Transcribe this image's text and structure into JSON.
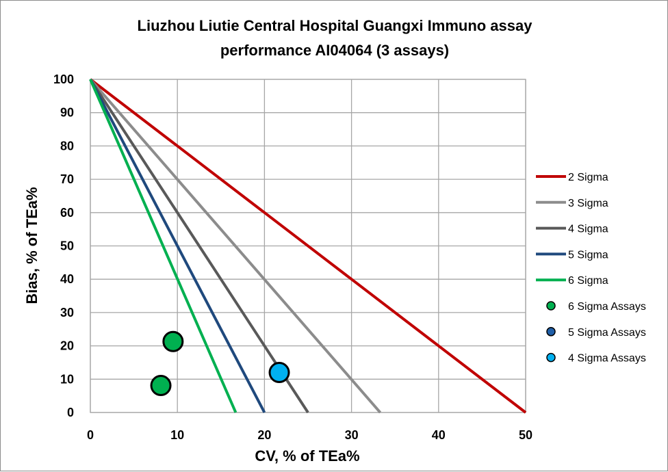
{
  "chart_data": {
    "type": "scatter",
    "title_lines": [
      "Liuzhou Liutie Central Hospital Guangxi Immuno assay",
      "performance AI04064 (3 assays)"
    ],
    "xlabel": "CV, % of TEa%",
    "ylabel": "Bias, % of TEa%",
    "xlim": [
      0,
      50
    ],
    "ylim": [
      0,
      100
    ],
    "xticks": [
      "0",
      "10",
      "20",
      "30",
      "40",
      "50"
    ],
    "yticks": [
      "0",
      "10",
      "20",
      "30",
      "40",
      "50",
      "60",
      "70",
      "80",
      "90",
      "100"
    ],
    "grid": true,
    "legend_position": "right",
    "lines": [
      {
        "name": "2 Sigma",
        "color": "#c00000",
        "points": [
          [
            0,
            100
          ],
          [
            50,
            0
          ]
        ]
      },
      {
        "name": "3 Sigma",
        "color": "#8c8c8c",
        "points": [
          [
            0,
            100
          ],
          [
            33.3,
            0
          ]
        ]
      },
      {
        "name": "4 Sigma",
        "color": "#595959",
        "points": [
          [
            0,
            100
          ],
          [
            25,
            0
          ]
        ]
      },
      {
        "name": "5 Sigma",
        "color": "#1f497d",
        "points": [
          [
            0,
            100
          ],
          [
            20,
            0
          ]
        ]
      },
      {
        "name": "6 Sigma",
        "color": "#00b050",
        "points": [
          [
            0,
            100
          ],
          [
            16.7,
            0
          ]
        ]
      }
    ],
    "series": [
      {
        "name": "6 Sigma Assays",
        "color": "#00b050",
        "points": [
          [
            9.5,
            21.3
          ],
          [
            8.1,
            8.1
          ]
        ]
      },
      {
        "name": "5 Sigma Assays",
        "color": "#1f5fa8",
        "points": []
      },
      {
        "name": "4 Sigma Assays",
        "color": "#00b0f0",
        "points": [
          [
            21.7,
            12.0
          ]
        ]
      }
    ]
  }
}
